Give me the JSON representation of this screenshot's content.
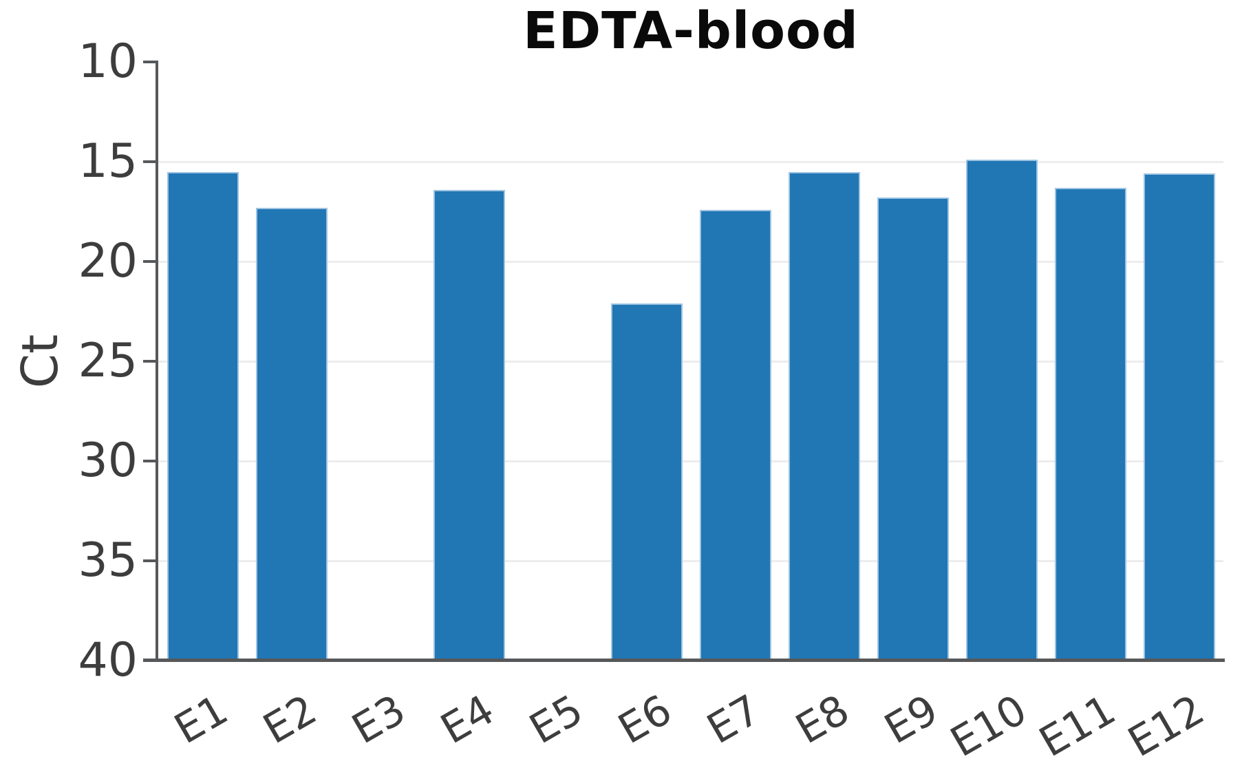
{
  "title": "EDTA-blood",
  "y_axis": {
    "label": "Ct",
    "ticks": [
      "10",
      "15",
      "20",
      "25",
      "30",
      "35",
      "40"
    ]
  },
  "x_axis": {
    "labels": [
      "E1",
      "E2",
      "E3",
      "E4",
      "E5",
      "E6",
      "E7",
      "E8",
      "E9",
      "E10",
      "E11",
      "E12"
    ]
  },
  "colors": {
    "bar_fill": "#2176b4",
    "bar_edge": "#9ec4e2",
    "axis_line": "#57585a",
    "gridline": "#ededed",
    "tick_text": "#3d3d3d",
    "title_text": "#0a0a0a"
  },
  "chart_data": {
    "type": "bar",
    "title": "EDTA-blood",
    "xlabel": "",
    "ylabel": "Ct",
    "categories": [
      "E1",
      "E2",
      "E3",
      "E4",
      "E5",
      "E6",
      "E7",
      "E8",
      "E9",
      "E10",
      "E11",
      "E12"
    ],
    "values": [
      15.5,
      17.3,
      null,
      16.4,
      null,
      22.1,
      17.4,
      15.5,
      16.8,
      14.9,
      16.3,
      15.6
    ],
    "missing_categories": [
      "E3",
      "E5"
    ],
    "y_ticks": [
      10,
      15,
      20,
      25,
      30,
      35,
      40
    ],
    "ylim": [
      40,
      10
    ],
    "y_axis_inverted": true,
    "grid": "horizontal",
    "legend_position": "none",
    "bar_color": "#2176b4"
  }
}
